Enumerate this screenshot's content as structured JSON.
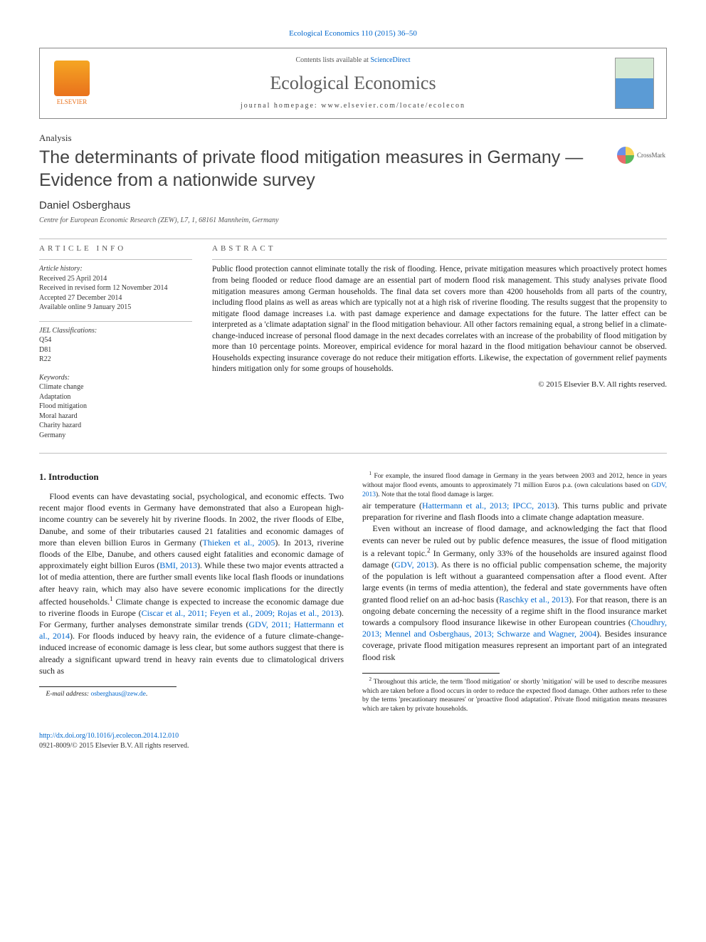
{
  "journal_ref": "Ecological Economics 110 (2015) 36–50",
  "header": {
    "contents_line_prefix": "Contents lists available at ",
    "contents_link": "ScienceDirect",
    "journal_name": "Ecological Economics",
    "homepage_prefix": "journal homepage: ",
    "homepage_url": "www.elsevier.com/locate/ecolecon",
    "publisher_label": "ELSEVIER"
  },
  "article_type": "Analysis",
  "title": "The determinants of private flood mitigation measures in Germany — Evidence from a nationwide survey",
  "crossmark_label": "CrossMark",
  "author": "Daniel Osberghaus",
  "affiliation": "Centre for European Economic Research (ZEW), L7, 1, 68161 Mannheim, Germany",
  "article_info": {
    "heading": "article info",
    "history_label": "Article history:",
    "history": [
      "Received 25 April 2014",
      "Received in revised form 12 November 2014",
      "Accepted 27 December 2014",
      "Available online 9 January 2015"
    ],
    "jel_label": "JEL Classifications:",
    "jel": [
      "Q54",
      "D81",
      "R22"
    ],
    "keywords_label": "Keywords:",
    "keywords": [
      "Climate change",
      "Adaptation",
      "Flood mitigation",
      "Moral hazard",
      "Charity hazard",
      "Germany"
    ]
  },
  "abstract": {
    "heading": "abstract",
    "text": "Public flood protection cannot eliminate totally the risk of flooding. Hence, private mitigation measures which proactively protect homes from being flooded or reduce flood damage are an essential part of modern flood risk management. This study analyses private flood mitigation measures among German households. The final data set covers more than 4200 households from all parts of the country, including flood plains as well as areas which are typically not at a high risk of riverine flooding. The results suggest that the propensity to mitigate flood damage increases i.a. with past damage experience and damage expectations for the future. The latter effect can be interpreted as a 'climate adaptation signal' in the flood mitigation behaviour. All other factors remaining equal, a strong belief in a climate-change-induced increase of personal flood damage in the next decades correlates with an increase of the probability of flood mitigation by more than 10 percentage points. Moreover, empirical evidence for moral hazard in the flood mitigation behaviour cannot be observed. Households expecting insurance coverage do not reduce their mitigation efforts. Likewise, the expectation of government relief payments hinders mitigation only for some groups of households.",
    "copyright": "© 2015 Elsevier B.V. All rights reserved."
  },
  "section1": {
    "heading": "1. Introduction",
    "p1a": "Flood events can have devastating social, psychological, and economic effects. Two recent major flood events in Germany have demonstrated that also a European high-income country can be severely hit by riverine floods. In 2002, the river floods of Elbe, Danube, and some of their tributaries caused 21 fatalities and economic damages of more than eleven billion Euros in Germany (",
    "p1_ref1": "Thieken et al., 2005",
    "p1b": "). In 2013, riverine floods of the Elbe, Danube, and others caused eight fatalities and economic damage of approximately eight billion Euros (",
    "p1_ref2": "BMI, 2013",
    "p1c": "). While these two major events attracted a lot of media attention, there are further small events like local flash floods or inundations after heavy rain, which may also have severe economic implications for the directly affected households.",
    "p1_fn1": "1",
    "p1d": " Climate change is expected to increase the economic damage due to riverine floods in Europe (",
    "p1_ref3": "Ciscar et al., 2011; Feyen et al., 2009; Rojas et al., 2013",
    "p1e": "). For Germany, further analyses demonstrate similar trends (",
    "p1_ref4": "GDV, 2011; Hattermann et al., 2014",
    "p1f": "). For floods induced by heavy rain, the evidence of a future climate-change-induced increase of economic damage is less clear, but some authors suggest that there is already a significant upward trend in heavy rain events due to climatological drivers such as",
    "p2a": "air temperature (",
    "p2_ref1": "Hattermann et al., 2013; IPCC, 2013",
    "p2b": "). This turns public and private preparation for riverine and flash floods into a climate change adaptation measure.",
    "p3a": "Even without an increase of flood damage, and acknowledging the fact that flood events can never be ruled out by public defence measures, the issue of flood mitigation is a relevant topic.",
    "p3_fn2": "2",
    "p3b": " In Germany, only 33% of the households are insured against flood damage (",
    "p3_ref1": "GDV, 2013",
    "p3c": "). As there is no official public compensation scheme, the majority of the population is left without a guaranteed compensation after a flood event. After large events (in terms of media attention), the federal and state governments have often granted flood relief on an ad-hoc basis (",
    "p3_ref2": "Raschky et al., 2013",
    "p3d": "). For that reason, there is an ongoing debate concerning the necessity of a regime shift in the flood insurance market towards a compulsory flood insurance likewise in other European countries (",
    "p3_ref3": "Choudhry, 2013; Mennel and Osberghaus, 2013; Schwarze and Wagner, 2004",
    "p3e": "). Besides insurance coverage, private flood mitigation measures represent an important part of an integrated flood risk"
  },
  "footnotes": {
    "email_label": "E-mail address: ",
    "email": "osberghaus@zew.de",
    "fn1_marker": "1",
    "fn1a": " For example, the insured flood damage in Germany in the years between 2003 and 2012, hence in years without major flood events, amounts to approximately 71 million Euros p.a. (own calculations based on ",
    "fn1_ref": "GDV, 2013",
    "fn1b": "). Note that the total flood damage is larger.",
    "fn2_marker": "2",
    "fn2": " Throughout this article, the term 'flood mitigation' or shortly 'mitigation' will be used to describe measures which are taken before a flood occurs in order to reduce the expected flood damage. Other authors refer to these by the terms 'precautionary measures' or 'proactive flood adaptation'. Private flood mitigation means measures which are taken by private households."
  },
  "footer": {
    "doi": "http://dx.doi.org/10.1016/j.ecolecon.2014.12.010",
    "issn_line": "0921-8009/© 2015 Elsevier B.V. All rights reserved."
  },
  "colors": {
    "link": "#0066cc",
    "text": "#222222",
    "heading_gray": "#555555",
    "rule": "#bfbfbf"
  },
  "typography": {
    "body_fontsize_pt": 9,
    "title_fontsize_pt": 19,
    "journal_name_fontsize_pt": 20,
    "author_fontsize_pt": 11,
    "abstract_fontsize_pt": 8.5,
    "footnote_fontsize_pt": 7
  }
}
